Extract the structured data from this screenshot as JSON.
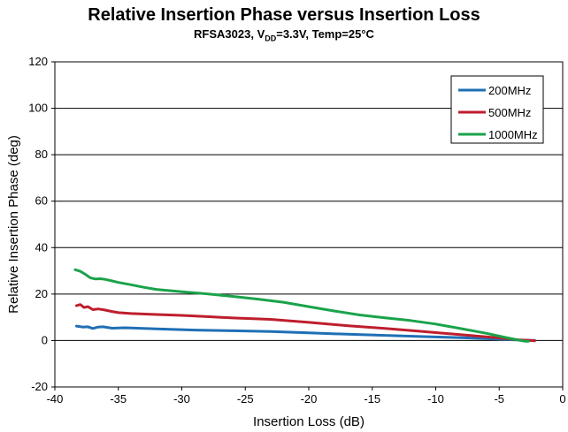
{
  "chart_data": {
    "type": "line",
    "title": "Relative Insertion Phase versus Insertion Loss",
    "subtitle": {
      "device": "RFSA3023, V",
      "subscript": "DD",
      "conditions": "=3.3V, Temp=25°C"
    },
    "xlabel": "Insertion Loss (dB)",
    "ylabel": "Relative Insertion Phase (deg)",
    "xlim": [
      -40,
      0
    ],
    "ylim": [
      -20,
      120
    ],
    "xticks": [
      -40,
      -35,
      -30,
      -25,
      -20,
      -15,
      -10,
      -5,
      0
    ],
    "yticks": [
      -20,
      0,
      20,
      40,
      60,
      80,
      100,
      120
    ],
    "grid": "horizontal",
    "legend_position": "top-right",
    "series": [
      {
        "name": "200MHz",
        "color": "#1f6fb5",
        "x": [
          -38.3,
          -37.8,
          -37.4,
          -37.0,
          -36.6,
          -36.2,
          -35.5,
          -34.5,
          -32,
          -29,
          -26,
          -23,
          -20,
          -17,
          -14,
          -11,
          -8,
          -5,
          -3.5,
          -2.5,
          -2.2
        ],
        "y": [
          6.2,
          5.8,
          5.9,
          5.2,
          5.8,
          5.9,
          5.3,
          5.5,
          5.0,
          4.5,
          4.2,
          3.9,
          3.3,
          2.7,
          2.2,
          1.7,
          1.2,
          0.6,
          0.2,
          0.1,
          0.0
        ]
      },
      {
        "name": "500MHz",
        "color": "#be1e2d",
        "x": [
          -38.3,
          -38.0,
          -37.7,
          -37.4,
          -37.0,
          -36.6,
          -36.2,
          -35.5,
          -35.0,
          -34.0,
          -32,
          -30,
          -28,
          -26,
          -23,
          -20,
          -17,
          -14,
          -11,
          -8,
          -5,
          -3.5,
          -2.5,
          -2.2
        ],
        "y": [
          15.0,
          15.5,
          14.2,
          14.6,
          13.3,
          13.6,
          13.3,
          12.5,
          12.0,
          11.6,
          11.2,
          10.8,
          10.3,
          9.7,
          9.1,
          7.8,
          6.4,
          5.2,
          3.9,
          2.5,
          1.1,
          0.3,
          0.0,
          -0.1
        ]
      },
      {
        "name": "1000MHz",
        "color": "#1aa34a",
        "x": [
          -38.4,
          -38.0,
          -37.6,
          -37.2,
          -36.8,
          -36.4,
          -36.0,
          -35.0,
          -34.0,
          -33.0,
          -32,
          -30,
          -28,
          -26,
          -24,
          -22,
          -20,
          -18,
          -16,
          -14,
          -12,
          -10,
          -8,
          -6,
          -4.5,
          -3.5,
          -3.0,
          -2.7
        ],
        "y": [
          30.5,
          29.8,
          28.5,
          27.0,
          26.5,
          26.6,
          26.3,
          25.0,
          24.0,
          22.9,
          22.0,
          21.0,
          20.1,
          19.0,
          17.8,
          16.5,
          14.6,
          12.7,
          11.0,
          9.8,
          8.6,
          7.1,
          5.1,
          3.1,
          1.3,
          0.2,
          -0.3,
          -0.3
        ]
      }
    ]
  }
}
